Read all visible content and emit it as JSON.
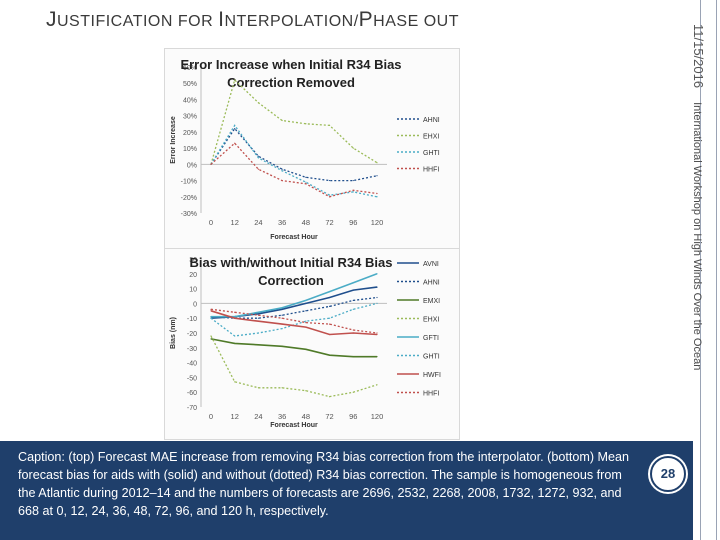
{
  "slide": {
    "title_first": "J",
    "title_rest": "USTIFICATION FOR ",
    "title_first2": "I",
    "title_rest2": "NTERPOLATION/",
    "title_first3": "P",
    "title_rest3": "HASE OUT",
    "date": "11/15/2016",
    "footer": "International Workshop on High Winds Over the Ocean",
    "page_number": "28",
    "caption": "Caption: (top) Forecast MAE increase from removing R34 bias correction from the interpolator. (bottom) Mean forecast bias for aids with (solid) and without (dotted) R34 bias correction. The sample is homogeneous from the Atlantic during 2012–14 and the numbers of forecasts are 2696, 2532, 2268, 2008, 1732, 1272, 932, and 668 at 0, 12, 24, 36, 48, 72, 96, and 120 h, respectively."
  },
  "chart_data": [
    {
      "type": "line",
      "title": "Error Increase when Initial R34 Bias Correction Removed",
      "xlabel": "Forecast Hour",
      "ylabel": "Error Increase",
      "categories": [
        "0",
        "12",
        "24",
        "36",
        "48",
        "72",
        "96",
        "120"
      ],
      "yticks": [
        "60%",
        "50%",
        "40%",
        "30%",
        "20%",
        "10%",
        "0%",
        "-10%",
        "-20%",
        "-30%"
      ],
      "ylim": [
        -30,
        60
      ],
      "legend_position": "right",
      "series": [
        {
          "name": "AHNI",
          "color": "#1f4e8c",
          "dash": "dotted",
          "values": [
            0,
            22,
            5,
            -3,
            -8,
            -10,
            -10,
            -7
          ]
        },
        {
          "name": "EHXI",
          "color": "#9bbb59",
          "dash": "dotted",
          "values": [
            0,
            52,
            38,
            27,
            25,
            24,
            10,
            1
          ]
        },
        {
          "name": "GHTI",
          "color": "#4bacc6",
          "dash": "dotted",
          "values": [
            0,
            24,
            4,
            -4,
            -11,
            -19,
            -17,
            -20
          ]
        },
        {
          "name": "HHFI",
          "color": "#c0504d",
          "dash": "dotted",
          "values": [
            0,
            13,
            -3,
            -10,
            -12,
            -20,
            -16,
            -18
          ]
        }
      ]
    },
    {
      "type": "line",
      "title": "Bias with/without Initial R34 Bias Correction",
      "xlabel": "Forecast Hour",
      "ylabel": "Bias (nm)",
      "categories": [
        "0",
        "12",
        "24",
        "36",
        "48",
        "72",
        "96",
        "120"
      ],
      "yticks": [
        "30",
        "20",
        "10",
        "0",
        "-10",
        "-20",
        "-30",
        "-40",
        "-50",
        "-60",
        "-70"
      ],
      "ylim": [
        -70,
        30
      ],
      "legend_position": "right",
      "series": [
        {
          "name": "AVNI",
          "color": "#1f4e8c",
          "dash": "solid",
          "values": [
            -10,
            -9,
            -7,
            -4,
            0,
            4,
            9,
            11
          ]
        },
        {
          "name": "AHNI",
          "color": "#1f4e8c",
          "dash": "dotted",
          "values": [
            -9,
            -10,
            -10,
            -8,
            -5,
            -2,
            2,
            4
          ]
        },
        {
          "name": "EMXI",
          "color": "#4f7a28",
          "dash": "solid",
          "values": [
            -24,
            -27,
            -28,
            -29,
            -31,
            -35,
            -36,
            -36
          ]
        },
        {
          "name": "EHXI",
          "color": "#9bbb59",
          "dash": "dotted",
          "values": [
            -22,
            -53,
            -57,
            -57,
            -59,
            -63,
            -60,
            -55
          ]
        },
        {
          "name": "GFTI",
          "color": "#4bacc6",
          "dash": "solid",
          "values": [
            -9,
            -9,
            -6,
            -3,
            2,
            8,
            14,
            20
          ]
        },
        {
          "name": "GHTI",
          "color": "#4bacc6",
          "dash": "dotted",
          "values": [
            -10,
            -22,
            -20,
            -17,
            -12,
            -10,
            -4,
            0
          ]
        },
        {
          "name": "HWFI",
          "color": "#c0504d",
          "dash": "solid",
          "values": [
            -5,
            -10,
            -12,
            -14,
            -16,
            -21,
            -20,
            -21
          ]
        },
        {
          "name": "HHFI",
          "color": "#c0504d",
          "dash": "dotted",
          "values": [
            -4,
            -6,
            -8,
            -10,
            -13,
            -14,
            -18,
            -20
          ]
        }
      ]
    }
  ]
}
